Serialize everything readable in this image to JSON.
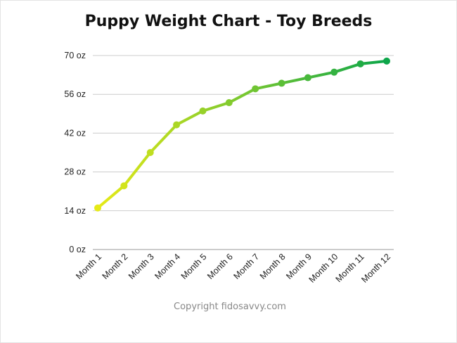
{
  "title": "Puppy Weight Chart - Toy Breeds",
  "copyright": "Copyright fidosavvy.com",
  "colors": {
    "gradient_start": "#e6ea17",
    "gradient_end": "#0da64a",
    "grid": "#cccccc",
    "axis": "#999999"
  },
  "chart_data": {
    "type": "line",
    "title": "Puppy Weight Chart - Toy Breeds",
    "xlabel": "",
    "ylabel": "",
    "categories": [
      "Month 1",
      "Month 2",
      "Month 3",
      "Month 4",
      "Month 5",
      "Month 6",
      "Month 7",
      "Month 8",
      "Month 9",
      "Month 10",
      "Month 11",
      "Month 12"
    ],
    "series": [
      {
        "values": [
          15,
          23,
          35,
          45,
          50,
          53,
          58,
          60,
          62,
          64,
          67,
          68
        ]
      }
    ],
    "y_ticks": [
      0,
      14,
      28,
      42,
      56,
      70
    ],
    "y_tick_labels": [
      "0 oz",
      "14 oz",
      "28 oz",
      "42 oz",
      "56 oz",
      "70 oz"
    ],
    "ylim": [
      0,
      70
    ],
    "grid": true,
    "legend": "none"
  }
}
